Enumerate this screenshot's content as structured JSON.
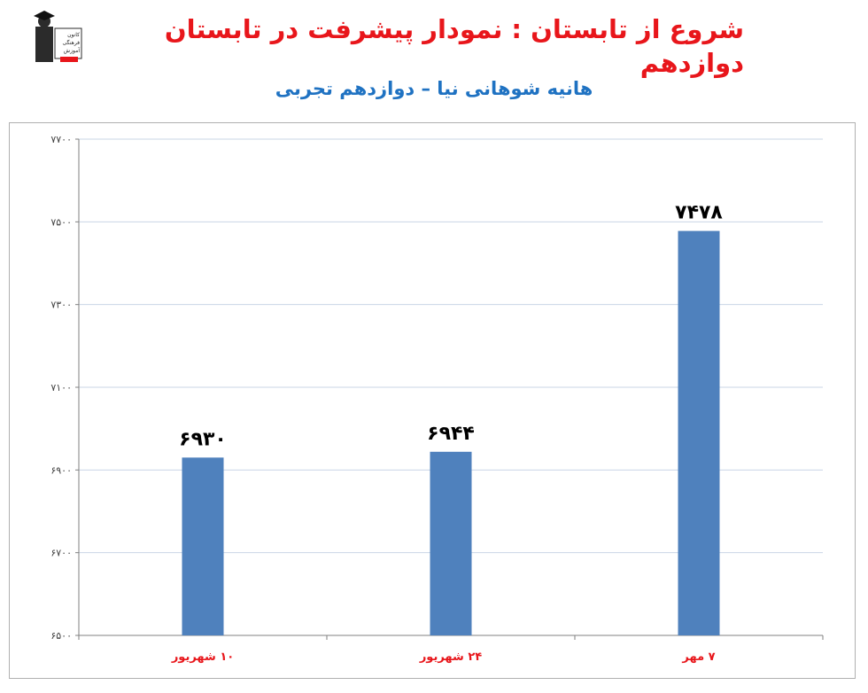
{
  "header": {
    "title": "شروع از تابستان : نمودار پیشرفت در تابستان دوازدهم",
    "subtitle": "هانیه شوهانی نیا – دوازدهم تجربی"
  },
  "logo": {
    "icon": "graduate-logo-icon",
    "text_lines": [
      "کانون",
      "فرهنگی",
      "آموزش"
    ]
  },
  "colors": {
    "bar": "#4f81bd",
    "title": "#e8161b",
    "subtitle": "#1f72c2",
    "xlabels": "#e8161b",
    "grid": "#c9d5e6"
  },
  "chart_data": {
    "type": "bar",
    "categories": [
      "۱۰ شهریور",
      "۲۴ شهریور",
      "۷ مهر"
    ],
    "values": [
      6930,
      6944,
      7478
    ],
    "value_labels": [
      "۶۹۳۰",
      "۶۹۴۴",
      "۷۴۷۸"
    ],
    "ylim": [
      6500,
      7700
    ],
    "yticks": [
      6500,
      6700,
      6900,
      7100,
      7300,
      7500,
      7700
    ],
    "ytick_labels": [
      "۶۵۰۰",
      "۶۷۰۰",
      "۶۹۰۰",
      "۷۱۰۰",
      "۷۳۰۰",
      "۷۵۰۰",
      "۷۷۰۰"
    ],
    "grid": true,
    "legend": "none"
  }
}
